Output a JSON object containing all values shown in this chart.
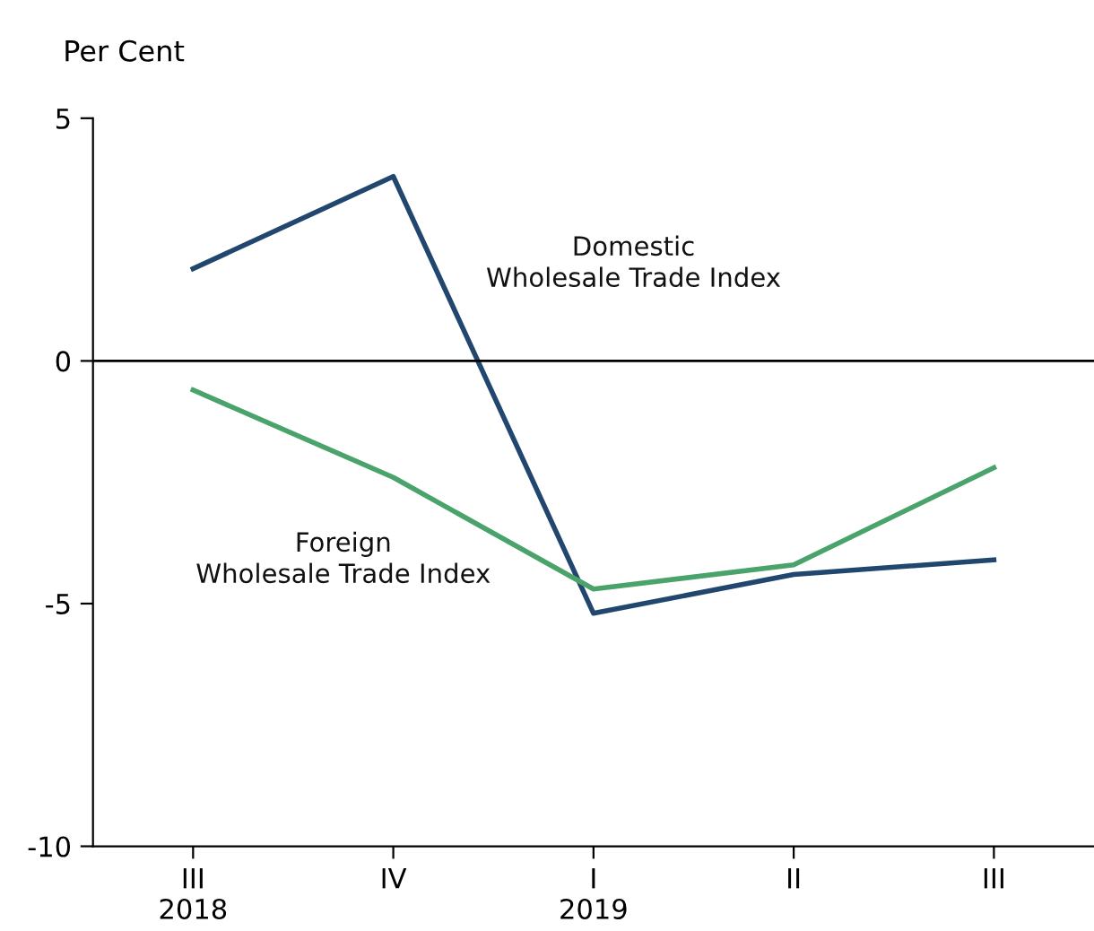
{
  "chart_data": {
    "type": "line",
    "ylabel": "Per Cent",
    "categories": [
      "III\n2018",
      "IV",
      "I\n2019",
      "II",
      "III"
    ],
    "series": [
      {
        "name": "Domestic\nWholesale Trade Index",
        "color": "#22476f",
        "values": [
          1.9,
          3.8,
          -5.2,
          -4.4,
          -4.1
        ]
      },
      {
        "name": "Foreign\nWholesale Trade Index",
        "color": "#4aa36b",
        "values": [
          -0.6,
          -2.4,
          -4.7,
          -4.2,
          -2.2
        ]
      }
    ],
    "ylim": [
      -10,
      5
    ],
    "yticks": [
      -10,
      -5,
      0,
      5
    ],
    "ref_lines": [
      {
        "axis": "y",
        "value": 0,
        "color": "#000000"
      }
    ],
    "grid": false,
    "legend": false,
    "marker": "none",
    "line_style": "solid"
  }
}
